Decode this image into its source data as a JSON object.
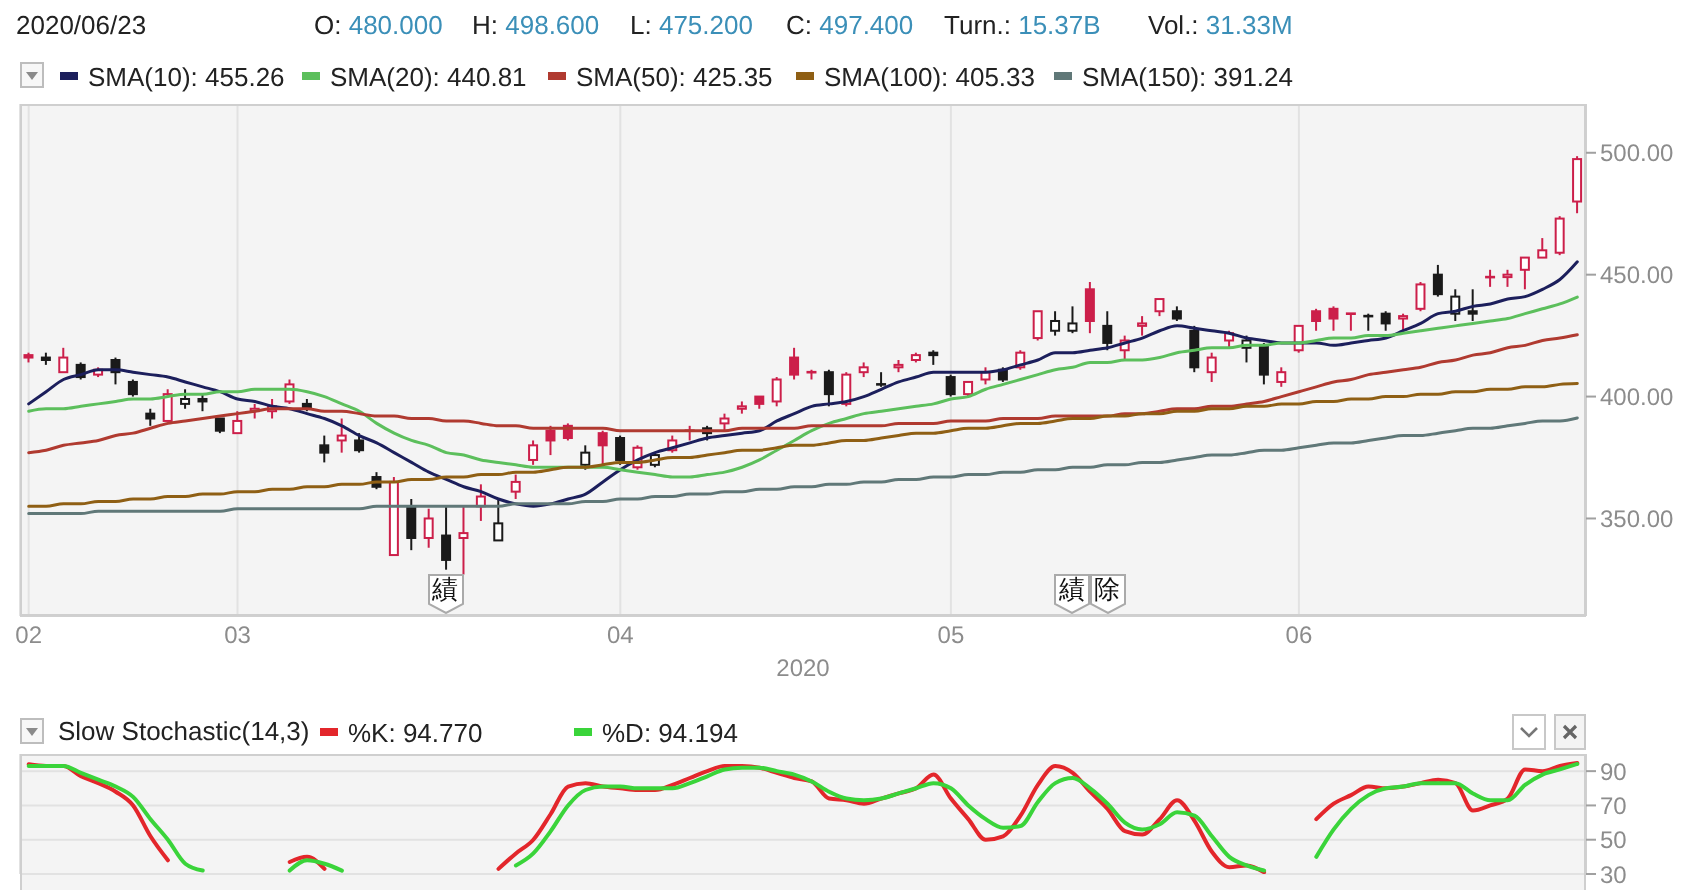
{
  "chart_data": [
    {
      "type": "candlestick",
      "title": "2020/06/23",
      "annotations": [
        "O: 480.000",
        "H: 498.600",
        "L: 475.200",
        "C: 497.400",
        "Turn.: 15.37B",
        "Vol.: 31.33M",
        "績",
        "績",
        "除"
      ],
      "xlabel": "2020",
      "categories": [
        "02",
        null,
        null,
        null,
        null,
        null,
        null,
        null,
        null,
        null,
        null,
        null,
        "03",
        null,
        null,
        null,
        null,
        null,
        null,
        null,
        null,
        null,
        null,
        null,
        null,
        null,
        null,
        null,
        null,
        null,
        null,
        null,
        null,
        null,
        "04",
        null,
        null,
        null,
        null,
        null,
        null,
        null,
        null,
        null,
        null,
        null,
        null,
        null,
        null,
        null,
        null,
        null,
        null,
        "05",
        null,
        null,
        null,
        null,
        null,
        null,
        null,
        null,
        null,
        null,
        null,
        null,
        null,
        null,
        null,
        null,
        null,
        null,
        null,
        "06",
        null,
        null,
        null,
        null,
        null,
        null,
        null,
        null,
        null,
        null,
        null,
        null,
        null,
        null,
        null,
        null
      ],
      "ohlc": [
        [
          417,
          418,
          414,
          416
        ],
        [
          416,
          418,
          413,
          415
        ],
        [
          410,
          420,
          410,
          416
        ],
        [
          413,
          414,
          407,
          408
        ],
        [
          409,
          412,
          408,
          411
        ],
        [
          415,
          416,
          405,
          410
        ],
        [
          406,
          407,
          400,
          401
        ],
        [
          393,
          395,
          388,
          391
        ],
        [
          390,
          403,
          390,
          401
        ],
        [
          397,
          403,
          395,
          399
        ],
        [
          399,
          401,
          394,
          398
        ],
        [
          391,
          391,
          385,
          386
        ],
        [
          385,
          394,
          385,
          390
        ],
        [
          394,
          397,
          391,
          395
        ],
        [
          394,
          399,
          391,
          396
        ],
        [
          398,
          407,
          397,
          405
        ],
        [
          397,
          399,
          394,
          395
        ],
        [
          380,
          384,
          373,
          377
        ],
        [
          382,
          391,
          377,
          384
        ],
        [
          382,
          385,
          377,
          378
        ],
        [
          367,
          369,
          362,
          363
        ],
        [
          335,
          367,
          335,
          365
        ],
        [
          355,
          358,
          337,
          342
        ],
        [
          342,
          354,
          338,
          350
        ],
        [
          343,
          355,
          329,
          333
        ],
        [
          342,
          355,
          327,
          344
        ],
        [
          355,
          364,
          349,
          359
        ],
        [
          341,
          358,
          341,
          348
        ],
        [
          361,
          368,
          358,
          365
        ],
        [
          374,
          382,
          372,
          380
        ],
        [
          386,
          388,
          376,
          382
        ],
        [
          388,
          389,
          382,
          383
        ],
        [
          372,
          380,
          370,
          377
        ],
        [
          385,
          386,
          372,
          380
        ],
        [
          383,
          384,
          372,
          374
        ],
        [
          371,
          380,
          370,
          379
        ],
        [
          372,
          377,
          371,
          376
        ],
        [
          378,
          384,
          377,
          382
        ],
        [
          386,
          388,
          382,
          386
        ],
        [
          387,
          388,
          382,
          385
        ],
        [
          389,
          393,
          386,
          391
        ],
        [
          395,
          398,
          393,
          396
        ],
        [
          400,
          400,
          395,
          397
        ],
        [
          398,
          408,
          396,
          407
        ],
        [
          416,
          420,
          407,
          409
        ],
        [
          410,
          411,
          407,
          410
        ],
        [
          410,
          411,
          396,
          401
        ],
        [
          397,
          410,
          396,
          409
        ],
        [
          410,
          414,
          408,
          412
        ],
        [
          405,
          410,
          404,
          405
        ],
        [
          412,
          415,
          410,
          413
        ],
        [
          415,
          418,
          414,
          417
        ],
        [
          418,
          419,
          413,
          417
        ],
        [
          408,
          409,
          400,
          401
        ],
        [
          401,
          406,
          400,
          406
        ],
        [
          407,
          412,
          405,
          410
        ],
        [
          411,
          412,
          406,
          407
        ],
        [
          412,
          419,
          411,
          418
        ],
        [
          424,
          435,
          423,
          435
        ],
        [
          427,
          435,
          425,
          431
        ],
        [
          427,
          437,
          426,
          430
        ],
        [
          444,
          447,
          426,
          431
        ],
        [
          429,
          435,
          419,
          422
        ],
        [
          419,
          425,
          415,
          423
        ],
        [
          429,
          433,
          425,
          430
        ],
        [
          435,
          440,
          433,
          440
        ],
        [
          435,
          437,
          431,
          432
        ],
        [
          427,
          429,
          410,
          412
        ],
        [
          410,
          418,
          406,
          416
        ],
        [
          423,
          427,
          420,
          426
        ],
        [
          420,
          425,
          414,
          423
        ],
        [
          421,
          422,
          405,
          409
        ],
        [
          406,
          412,
          404,
          410
        ],
        [
          419,
          429,
          418,
          429
        ],
        [
          435,
          436,
          427,
          431
        ],
        [
          436,
          437,
          427,
          432
        ],
        [
          434,
          434,
          427,
          434
        ],
        [
          433,
          434,
          427,
          433
        ],
        [
          434,
          435,
          427,
          430
        ],
        [
          432,
          434,
          427,
          433
        ],
        [
          436,
          447,
          435,
          446
        ],
        [
          450,
          454,
          441,
          442
        ],
        [
          434,
          444,
          431,
          441
        ],
        [
          435,
          444,
          431,
          434
        ],
        [
          449,
          452,
          445,
          449
        ],
        [
          449,
          452,
          445,
          450
        ],
        [
          452,
          457,
          444,
          457
        ],
        [
          457,
          465,
          457,
          460
        ],
        [
          459,
          474,
          458,
          473
        ],
        [
          480,
          498.6,
          475.2,
          497.4
        ]
      ],
      "colors": [
        "#cc1f4a",
        "#1a1a1a",
        "#cc1f4a",
        "#1a1a1a",
        "#cc1f4a",
        "#1a1a1a",
        "#1a1a1a",
        "#1a1a1a",
        "#cc1f4a",
        "#1a1a1a",
        "#1a1a1a",
        "#1a1a1a",
        "#cc1f4a",
        "#cc1f4a",
        "#cc1f4a",
        "#cc1f4a",
        "#1a1a1a",
        "#1a1a1a",
        "#cc1f4a",
        "#1a1a1a",
        "#1a1a1a",
        "#cc1f4a",
        "#1a1a1a",
        "#cc1f4a",
        "#1a1a1a",
        "#cc1f4a",
        "#cc1f4a",
        "#1a1a1a",
        "#cc1f4a",
        "#cc1f4a",
        "#cc1f4a",
        "#cc1f4a",
        "#1a1a1a",
        "#cc1f4a",
        "#1a1a1a",
        "#cc1f4a",
        "#1a1a1a",
        "#cc1f4a",
        "#cc1f4a",
        "#1a1a1a",
        "#cc1f4a",
        "#cc1f4a",
        "#cc1f4a",
        "#cc1f4a",
        "#cc1f4a",
        "#cc1f4a",
        "#1a1a1a",
        "#cc1f4a",
        "#cc1f4a",
        "#1a1a1a",
        "#cc1f4a",
        "#cc1f4a",
        "#1a1a1a",
        "#1a1a1a",
        "#cc1f4a",
        "#cc1f4a",
        "#1a1a1a",
        "#cc1f4a",
        "#cc1f4a",
        "#1a1a1a",
        "#1a1a1a",
        "#cc1f4a",
        "#1a1a1a",
        "#cc1f4a",
        "#cc1f4a",
        "#cc1f4a",
        "#1a1a1a",
        "#1a1a1a",
        "#cc1f4a",
        "#cc1f4a",
        "#1a1a1a",
        "#1a1a1a",
        "#cc1f4a",
        "#cc1f4a",
        "#cc1f4a",
        "#cc1f4a",
        "#cc1f4a",
        "#1a1a1a",
        "#1a1a1a",
        "#cc1f4a",
        "#cc1f4a",
        "#1a1a1a",
        "#1a1a1a",
        "#1a1a1a",
        "#cc1f4a",
        "#cc1f4a",
        "#cc1f4a",
        "#cc1f4a",
        "#cc1f4a",
        "#cc1f4a"
      ],
      "series": [
        {
          "type": "line",
          "name": "SMA(10): 455.26",
          "color": "#1c1f5c",
          "values": [
            397,
            402,
            407,
            409,
            411,
            411,
            410,
            409,
            408,
            406,
            404,
            402,
            399,
            398,
            396,
            395,
            393,
            391,
            388,
            384,
            381,
            377,
            373,
            369,
            366,
            363,
            361,
            358,
            356,
            355,
            356,
            358,
            360,
            365,
            370,
            374,
            377,
            379,
            381,
            383,
            384,
            385,
            386,
            390,
            393,
            396,
            397,
            398,
            400,
            403,
            406,
            408,
            410,
            410,
            410,
            410,
            411,
            413,
            415,
            418,
            418,
            419,
            420,
            422,
            424,
            427,
            429,
            428,
            427,
            426,
            424,
            423,
            422,
            422,
            422,
            421,
            422,
            423,
            424,
            427,
            430,
            434,
            435,
            437,
            438,
            440,
            441,
            444,
            448,
            455.26
          ]
        },
        {
          "type": "line",
          "name": "SMA(20): 440.81",
          "color": "#5cbf5c",
          "values": [
            394,
            395,
            395,
            396,
            397,
            398,
            399,
            399,
            400,
            401,
            401,
            402,
            402,
            403,
            403,
            403,
            402,
            400,
            397,
            394,
            389,
            385,
            382,
            380,
            377,
            376,
            374,
            373,
            372,
            371,
            371,
            371,
            371,
            371,
            370,
            369,
            368,
            367,
            367,
            368,
            369,
            371,
            374,
            378,
            382,
            386,
            389,
            391,
            393,
            394,
            395,
            396,
            397,
            399,
            400,
            403,
            405,
            407,
            409,
            411,
            412,
            414,
            414,
            415,
            415,
            416,
            418,
            419,
            420,
            420,
            421,
            421,
            422,
            422,
            423,
            424,
            424,
            425,
            425,
            426,
            427,
            428,
            429,
            430,
            431,
            432,
            434,
            436,
            438,
            440.81
          ]
        },
        {
          "type": "line",
          "name": "SMA(50): 425.35",
          "color": "#b03a30",
          "values": [
            377,
            378,
            380,
            381,
            382,
            384,
            385,
            387,
            389,
            390,
            391,
            392,
            393,
            394,
            395,
            395,
            395,
            394,
            394,
            393,
            392,
            392,
            391,
            391,
            390,
            390,
            389,
            388,
            388,
            387,
            387,
            387,
            387,
            387,
            386,
            386,
            386,
            386,
            386,
            386,
            386,
            387,
            387,
            387,
            387,
            388,
            388,
            388,
            388,
            388,
            389,
            389,
            389,
            390,
            390,
            390,
            391,
            391,
            391,
            392,
            392,
            392,
            392,
            393,
            393,
            394,
            395,
            395,
            396,
            396,
            397,
            398,
            400,
            402,
            404,
            406,
            407,
            409,
            410,
            411,
            412,
            414,
            415,
            417,
            418,
            420,
            421,
            423,
            424,
            425.35
          ]
        },
        {
          "type": "line",
          "name": "SMA(100): 405.33",
          "color": "#8f5f14",
          "values": [
            355,
            355,
            356,
            356,
            357,
            357,
            358,
            358,
            359,
            359,
            360,
            360,
            361,
            361,
            362,
            362,
            363,
            363,
            364,
            364,
            365,
            365,
            366,
            366,
            367,
            367,
            368,
            368,
            369,
            369,
            370,
            371,
            371,
            372,
            373,
            373,
            374,
            375,
            375,
            376,
            377,
            378,
            378,
            379,
            380,
            380,
            381,
            382,
            382,
            383,
            384,
            385,
            385,
            386,
            387,
            387,
            388,
            389,
            389,
            390,
            391,
            391,
            392,
            392,
            393,
            393,
            394,
            394,
            395,
            395,
            396,
            396,
            397,
            397,
            398,
            398,
            399,
            399,
            400,
            400,
            401,
            401,
            402,
            402,
            403,
            403,
            404,
            404,
            405,
            405.33
          ]
        },
        {
          "type": "line",
          "name": "SMA(150): 391.24",
          "color": "#607878",
          "values": [
            352,
            352,
            352,
            352,
            353,
            353,
            353,
            353,
            353,
            353,
            353,
            353,
            354,
            354,
            354,
            354,
            354,
            354,
            354,
            354,
            355,
            355,
            355,
            355,
            355,
            355,
            355,
            355,
            356,
            356,
            356,
            356,
            357,
            357,
            358,
            358,
            359,
            359,
            360,
            360,
            361,
            361,
            362,
            362,
            363,
            363,
            364,
            364,
            365,
            365,
            366,
            366,
            367,
            367,
            368,
            368,
            369,
            369,
            370,
            370,
            371,
            371,
            372,
            372,
            373,
            373,
            374,
            375,
            376,
            376,
            377,
            378,
            378,
            379,
            380,
            381,
            381,
            382,
            383,
            384,
            384,
            385,
            386,
            387,
            387,
            388,
            389,
            390,
            390,
            391.24
          ]
        }
      ],
      "ylim": [
        310,
        520
      ],
      "yticks": [
        {
          "value": 350,
          "label": "350.00"
        },
        {
          "value": 400,
          "label": "400.00"
        },
        {
          "value": 450,
          "label": "450.00"
        },
        {
          "value": 500,
          "label": "500.00"
        }
      ],
      "grid": "x",
      "legend": "top left"
    },
    {
      "type": "line",
      "title": "Slow Stochastic(14,3)",
      "categories": [
        "02",
        null,
        null,
        null,
        null,
        null,
        null,
        null,
        null,
        null,
        null,
        null,
        "03",
        null,
        null,
        null,
        null,
        null,
        null,
        null,
        null,
        null,
        null,
        null,
        null,
        null,
        null,
        null,
        null,
        null,
        null,
        null,
        null,
        null,
        "04",
        null,
        null,
        null,
        null,
        null,
        null,
        null,
        null,
        null,
        null,
        null,
        null,
        null,
        null,
        null,
        null,
        null,
        null,
        "05",
        null,
        null,
        null,
        null,
        null,
        null,
        null,
        null,
        null,
        null,
        null,
        null,
        null,
        null,
        null,
        null,
        null,
        null,
        null,
        "06",
        null,
        null,
        null,
        null,
        null,
        null,
        null,
        null,
        null,
        null,
        null,
        null,
        null,
        null,
        null,
        null
      ],
      "series": [
        {
          "name": "%K: 94.770",
          "color": "#e3262b",
          "values": [
            94,
            93,
            93,
            87,
            83,
            78,
            70,
            52,
            38,
            null,
            null,
            null,
            null,
            null,
            null,
            37,
            40,
            33,
            null,
            null,
            null,
            null,
            null,
            null,
            null,
            null,
            null,
            33,
            42,
            50,
            65,
            81,
            83,
            81,
            80,
            79,
            79,
            82,
            86,
            90,
            93,
            93,
            92,
            89,
            86,
            84,
            74,
            73,
            71,
            74,
            77,
            80,
            88,
            74,
            62,
            50,
            52,
            64,
            82,
            93,
            89,
            78,
            68,
            55,
            53,
            62,
            73,
            61,
            43,
            34,
            35,
            31,
            null,
            null,
            62,
            71,
            76,
            81,
            80,
            81,
            83,
            85,
            83,
            67,
            70,
            74,
            91,
            90,
            93,
            94.77
          ]
        },
        {
          "name": "%D: 94.194",
          "color": "#3ad43a",
          "values": [
            93,
            93,
            93,
            89,
            85,
            81,
            75,
            62,
            50,
            36,
            32,
            null,
            null,
            null,
            null,
            32,
            38,
            36,
            32,
            null,
            null,
            null,
            null,
            null,
            null,
            null,
            null,
            null,
            35,
            42,
            55,
            70,
            79,
            81,
            81,
            80,
            80,
            80,
            83,
            87,
            91,
            92,
            92,
            90,
            88,
            84,
            78,
            74,
            73,
            74,
            77,
            80,
            83,
            80,
            70,
            62,
            57,
            58,
            72,
            83,
            86,
            80,
            71,
            60,
            56,
            59,
            66,
            64,
            52,
            40,
            35,
            32,
            null,
            null,
            40,
            56,
            68,
            76,
            80,
            81,
            83,
            83,
            83,
            77,
            73,
            73,
            82,
            88,
            91,
            94.194
          ]
        }
      ],
      "ylim": [
        30,
        100
      ],
      "yticks": [
        90,
        70,
        50,
        30
      ],
      "grid": true,
      "legend": "top left",
      "tick_labels": "y"
    }
  ]
}
